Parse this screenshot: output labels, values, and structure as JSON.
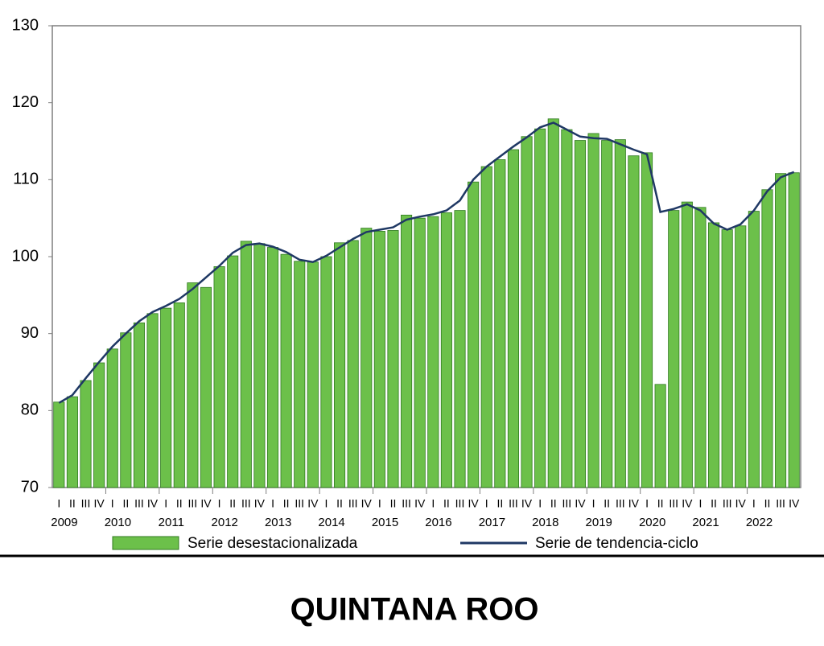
{
  "chart_data": {
    "type": "bar_line",
    "title": "QUINTANA ROO",
    "categories": [
      "I",
      "II",
      "III",
      "IV",
      "I",
      "II",
      "III",
      "IV",
      "I",
      "II",
      "III",
      "IV",
      "I",
      "II",
      "III",
      "IV",
      "I",
      "II",
      "III",
      "IV",
      "I",
      "II",
      "III",
      "IV",
      "I",
      "II",
      "III",
      "IV",
      "I",
      "II",
      "III",
      "IV",
      "I",
      "II",
      "III",
      "IV",
      "I",
      "II",
      "III",
      "IV",
      "I",
      "II",
      "III",
      "IV",
      "I",
      "II",
      "III",
      "IV",
      "I",
      "II",
      "III",
      "IV",
      "I",
      "II",
      "III",
      "IV"
    ],
    "category_groups": [
      "2009",
      "2010",
      "2011",
      "2012",
      "2013",
      "2014",
      "2015",
      "2016",
      "2017",
      "2018",
      "2019",
      "2020",
      "2021",
      "2022"
    ],
    "series": [
      {
        "name": "Serie desestacionalizada",
        "kind": "bar",
        "color": "#6cc04a",
        "values": [
          81.1,
          81.8,
          83.9,
          86.2,
          88.0,
          90.1,
          91.4,
          92.6,
          93.3,
          94.0,
          96.6,
          96.0,
          98.7,
          100.1,
          102.0,
          101.7,
          101.2,
          100.3,
          99.4,
          99.3,
          100.0,
          101.8,
          102.1,
          103.7,
          103.3,
          103.4,
          105.4,
          105.0,
          105.2,
          105.7,
          106.0,
          109.7,
          111.7,
          112.6,
          113.9,
          115.6,
          116.6,
          117.9,
          116.5,
          115.1,
          116.0,
          115.1,
          115.2,
          113.1,
          113.5,
          83.4,
          106.0,
          107.1,
          106.4,
          104.4,
          103.5,
          104.0,
          105.9,
          108.7,
          110.8,
          110.9
        ]
      },
      {
        "name": "Serie de tendencia-ciclo",
        "kind": "line",
        "color": "#1f3864",
        "values": [
          81.0,
          82.0,
          84.2,
          86.3,
          88.3,
          90.0,
          91.6,
          92.8,
          93.6,
          94.5,
          95.8,
          97.3,
          98.8,
          100.5,
          101.5,
          101.7,
          101.3,
          100.6,
          99.6,
          99.3,
          100.1,
          101.2,
          102.3,
          103.2,
          103.5,
          103.8,
          104.8,
          105.2,
          105.5,
          106.0,
          107.3,
          110.0,
          111.7,
          113.0,
          114.3,
          115.5,
          116.8,
          117.4,
          116.5,
          115.6,
          115.4,
          115.3,
          114.6,
          113.9,
          113.3,
          105.8,
          106.2,
          106.8,
          106.0,
          104.3,
          103.5,
          104.2,
          106.0,
          108.5,
          110.3,
          111.0
        ]
      }
    ],
    "ylim": [
      70,
      130
    ],
    "yticks": [
      70,
      80,
      90,
      100,
      110,
      120,
      130
    ],
    "grid": false
  }
}
